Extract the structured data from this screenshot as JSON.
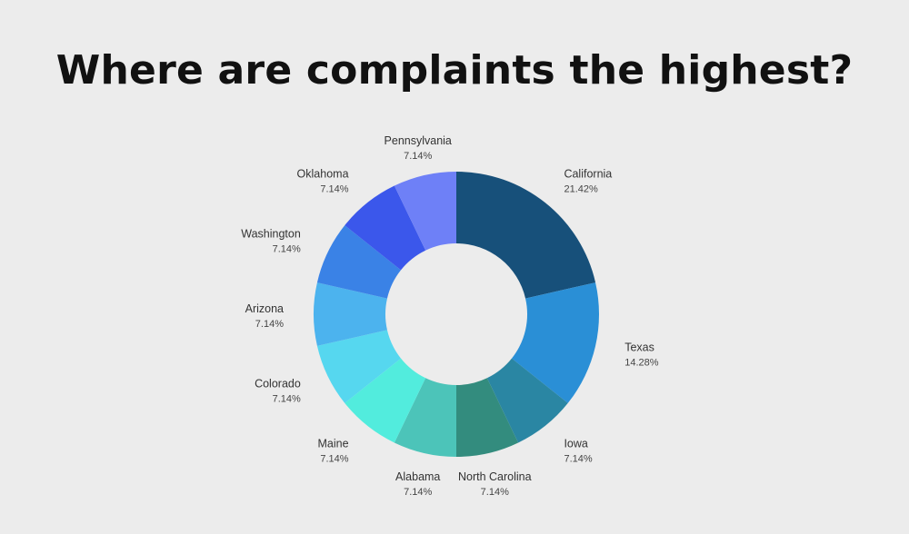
{
  "chart_data": {
    "type": "pie",
    "title": "Where are complaints the highest?",
    "donut": true,
    "slices": [
      {
        "label": "California",
        "value": 21.42,
        "value_text": "21.42%",
        "color": "#17507a"
      },
      {
        "label": "Texas",
        "value": 14.28,
        "value_text": "14.28%",
        "color": "#2a8fd6"
      },
      {
        "label": "Iowa",
        "value": 7.14,
        "value_text": "7.14%",
        "color": "#2a86a3"
      },
      {
        "label": "North Carolina",
        "value": 7.14,
        "value_text": "7.14%",
        "color": "#338c7e"
      },
      {
        "label": "Alabama",
        "value": 7.14,
        "value_text": "7.14%",
        "color": "#4cc4b9"
      },
      {
        "label": "Maine",
        "value": 7.14,
        "value_text": "7.14%",
        "color": "#52ecdd"
      },
      {
        "label": "Colorado",
        "value": 7.14,
        "value_text": "7.14%",
        "color": "#56d7ef"
      },
      {
        "label": "Arizona",
        "value": 7.14,
        "value_text": "7.14%",
        "color": "#4cb3ee"
      },
      {
        "label": "Washington",
        "value": 7.14,
        "value_text": "7.14%",
        "color": "#3a82e6"
      },
      {
        "label": "Oklahoma",
        "value": 7.14,
        "value_text": "7.14%",
        "color": "#3b57eb"
      },
      {
        "label": "Pennsylvania",
        "value": 7.14,
        "value_text": "7.14%",
        "color": "#6e80f7"
      }
    ],
    "start_angle_deg": 0,
    "direction": "clockwise",
    "legend": "none"
  }
}
